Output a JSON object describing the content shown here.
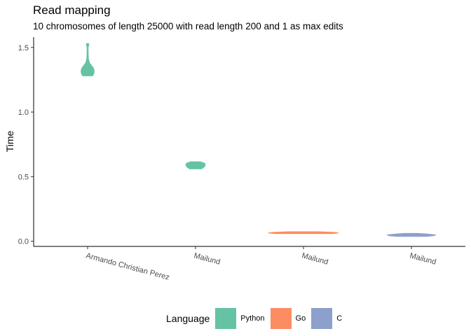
{
  "chart_data": {
    "type": "violin",
    "title": "Read mapping",
    "subtitle": "10 chromosomes of length 25000 with read length 200 and 1 as max edits",
    "xlabel": "",
    "ylabel": "Time",
    "ylim": [
      -0.04,
      1.58
    ],
    "yticks": [
      0.0,
      0.5,
      1.0,
      1.5
    ],
    "ytick_labels": [
      "0.0",
      "0.5",
      "1.0",
      "1.5"
    ],
    "categories": [
      "Armando Christian Perez",
      "Mailund",
      "Mailund",
      "Mailund"
    ],
    "grid": false,
    "legend": {
      "title": "Language",
      "position": "bottom",
      "entries": [
        {
          "name": "Python",
          "color": "#66c2a5"
        },
        {
          "name": "Go",
          "color": "#fc8d62"
        },
        {
          "name": "C",
          "color": "#8da0cb"
        }
      ]
    },
    "violins": [
      {
        "category_index": 0,
        "language": "Python",
        "color": "#66c2a5",
        "profile": [
          {
            "y": 1.28,
            "w": 0.1
          },
          {
            "y": 1.29,
            "w": 0.12
          },
          {
            "y": 1.3,
            "w": 0.13
          },
          {
            "y": 1.32,
            "w": 0.135
          },
          {
            "y": 1.34,
            "w": 0.12
          },
          {
            "y": 1.36,
            "w": 0.08
          },
          {
            "y": 1.38,
            "w": 0.04
          },
          {
            "y": 1.41,
            "w": 0.018
          },
          {
            "y": 1.46,
            "w": 0.012
          },
          {
            "y": 1.5,
            "w": 0.012
          },
          {
            "y": 1.52,
            "w": 0.025
          },
          {
            "y": 1.53,
            "w": 0.025
          }
        ]
      },
      {
        "category_index": 1,
        "language": "Python",
        "color": "#66c2a5",
        "profile": [
          {
            "y": 0.56,
            "w": 0.12
          },
          {
            "y": 0.57,
            "w": 0.16
          },
          {
            "y": 0.58,
            "w": 0.19
          },
          {
            "y": 0.595,
            "w": 0.2
          },
          {
            "y": 0.605,
            "w": 0.18
          },
          {
            "y": 0.615,
            "w": 0.1
          }
        ]
      },
      {
        "category_index": 2,
        "language": "Go",
        "color": "#fc8d62",
        "profile": [
          {
            "y": 0.059,
            "w": 0.6
          },
          {
            "y": 0.064,
            "w": 0.72
          },
          {
            "y": 0.069,
            "w": 0.62
          },
          {
            "y": 0.074,
            "w": 0.3
          }
        ]
      },
      {
        "category_index": 3,
        "language": "C",
        "color": "#8da0cb",
        "profile": [
          {
            "y": 0.037,
            "w": 0.3
          },
          {
            "y": 0.043,
            "w": 0.46
          },
          {
            "y": 0.049,
            "w": 0.5
          },
          {
            "y": 0.055,
            "w": 0.36
          },
          {
            "y": 0.061,
            "w": 0.14
          }
        ]
      }
    ]
  }
}
